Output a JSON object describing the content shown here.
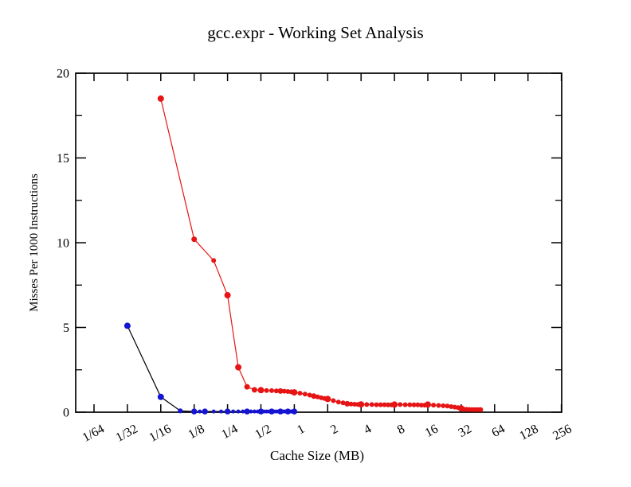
{
  "figure": {
    "background": "#ffffff",
    "frame_color": "#000000"
  },
  "chart_data": {
    "type": "line",
    "title": "gcc.expr - Working Set Analysis",
    "xlabel": "Cache Size (MB)",
    "ylabel": "Misses Per 1000 Instructions",
    "x_scale": "log2",
    "ylim": [
      0,
      20
    ],
    "xlim_labels": [
      "1/64",
      "256"
    ],
    "grid": "off",
    "legend": "none",
    "x_ticks": [
      {
        "label": "1/64",
        "value": 0.015625
      },
      {
        "label": "1/32",
        "value": 0.03125
      },
      {
        "label": "1/16",
        "value": 0.0625
      },
      {
        "label": "1/8",
        "value": 0.125
      },
      {
        "label": "1/4",
        "value": 0.25
      },
      {
        "label": "1/2",
        "value": 0.5
      },
      {
        "label": "1",
        "value": 1
      },
      {
        "label": "2",
        "value": 2
      },
      {
        "label": "4",
        "value": 4
      },
      {
        "label": "8",
        "value": 8
      },
      {
        "label": "16",
        "value": 16
      },
      {
        "label": "32",
        "value": 32
      },
      {
        "label": "64",
        "value": 64
      },
      {
        "label": "128",
        "value": 128
      },
      {
        "label": "256",
        "value": 256
      }
    ],
    "y_ticks": {
      "major": [
        0,
        5,
        10,
        15,
        20
      ],
      "minor": [
        2.5,
        7.5,
        12.5,
        17.5
      ]
    },
    "series": [
      {
        "id": "series-red",
        "marker": "circle",
        "marker_color": "#e61414",
        "line_color": "#e61414",
        "points": [
          [
            0.0625,
            18.5,
            3.5
          ],
          [
            0.125,
            10.2,
            3
          ],
          [
            0.1875,
            8.95,
            2.5
          ],
          [
            0.25,
            6.9,
            3.5
          ],
          [
            0.3125,
            2.65,
            3.5
          ],
          [
            0.375,
            1.5,
            3
          ],
          [
            0.4375,
            1.32,
            3
          ],
          [
            0.5,
            1.3,
            3.5
          ],
          [
            0.5625,
            1.28,
            2.5
          ],
          [
            0.625,
            1.27,
            2.5
          ],
          [
            0.6875,
            1.26,
            2.5
          ],
          [
            0.75,
            1.25,
            3
          ],
          [
            0.8125,
            1.24,
            2.5
          ],
          [
            0.875,
            1.22,
            2.5
          ],
          [
            0.9375,
            1.2,
            2.5
          ],
          [
            1,
            1.17,
            3.5
          ],
          [
            1.125,
            1.12,
            2.5
          ],
          [
            1.25,
            1.07,
            2.5
          ],
          [
            1.375,
            1.01,
            2.5
          ],
          [
            1.5,
            0.95,
            3
          ],
          [
            1.625,
            0.9,
            2.5
          ],
          [
            1.75,
            0.85,
            2.5
          ],
          [
            1.875,
            0.81,
            2.5
          ],
          [
            2,
            0.78,
            3.5
          ],
          [
            2.25,
            0.68,
            2.5
          ],
          [
            2.5,
            0.6,
            2.5
          ],
          [
            2.75,
            0.55,
            2.5
          ],
          [
            3,
            0.5,
            3
          ],
          [
            3.25,
            0.48,
            2.5
          ],
          [
            3.5,
            0.47,
            2.5
          ],
          [
            3.75,
            0.46,
            2.5
          ],
          [
            4,
            0.46,
            3.5
          ],
          [
            4.5,
            0.45,
            2.5
          ],
          [
            5,
            0.45,
            2.5
          ],
          [
            5.5,
            0.44,
            2.5
          ],
          [
            6,
            0.44,
            2.5
          ],
          [
            6.5,
            0.44,
            2.5
          ],
          [
            7,
            0.43,
            2.5
          ],
          [
            7.5,
            0.43,
            2.5
          ],
          [
            8,
            0.45,
            3.5
          ],
          [
            9,
            0.45,
            2.5
          ],
          [
            10,
            0.44,
            2.5
          ],
          [
            11,
            0.44,
            2.5
          ],
          [
            12,
            0.43,
            2.5
          ],
          [
            13,
            0.43,
            2.5
          ],
          [
            14,
            0.42,
            2.5
          ],
          [
            15,
            0.42,
            2.5
          ],
          [
            16,
            0.45,
            3.5
          ],
          [
            18,
            0.42,
            2.5
          ],
          [
            20,
            0.4,
            2.5
          ],
          [
            22,
            0.38,
            2.5
          ],
          [
            24,
            0.36,
            2.5
          ],
          [
            26,
            0.33,
            2.5
          ],
          [
            28,
            0.3,
            2.5
          ],
          [
            30,
            0.27,
            2.5
          ],
          [
            32,
            0.22,
            3.5
          ],
          [
            34,
            0.18,
            2.5
          ],
          [
            36,
            0.17,
            2.5
          ],
          [
            38,
            0.16,
            2.5
          ],
          [
            40,
            0.15,
            2.5
          ],
          [
            42,
            0.15,
            2.5
          ],
          [
            44,
            0.15,
            2.5
          ],
          [
            46,
            0.15,
            2.5
          ],
          [
            48,
            0.15,
            2.5
          ]
        ]
      },
      {
        "id": "series-blue",
        "marker": "circle",
        "marker_color": "#1414d2",
        "line_color": "#000000",
        "points": [
          [
            0.03125,
            5.1,
            3.5
          ],
          [
            0.0625,
            0.9,
            3.5
          ],
          [
            0.09375,
            0.08,
            2.6
          ],
          [
            0.125,
            0.04,
            3.2
          ],
          [
            0.140625,
            0.04,
            2
          ],
          [
            0.15625,
            0.04,
            3.2
          ],
          [
            0.1875,
            0.04,
            2
          ],
          [
            0.21875,
            0.04,
            2
          ],
          [
            0.25,
            0.04,
            3.2
          ],
          [
            0.28125,
            0.04,
            2
          ],
          [
            0.3125,
            0.04,
            2
          ],
          [
            0.34375,
            0.04,
            2
          ],
          [
            0.375,
            0.04,
            3.2
          ],
          [
            0.40625,
            0.04,
            2
          ],
          [
            0.4375,
            0.04,
            2
          ],
          [
            0.46875,
            0.04,
            2
          ],
          [
            0.5,
            0.04,
            3.2
          ],
          [
            0.53125,
            0.04,
            2
          ],
          [
            0.5625,
            0.04,
            2
          ],
          [
            0.59375,
            0.04,
            2
          ],
          [
            0.625,
            0.04,
            3.2
          ],
          [
            0.65625,
            0.04,
            2
          ],
          [
            0.6875,
            0.04,
            2
          ],
          [
            0.71875,
            0.04,
            2
          ],
          [
            0.75,
            0.04,
            3.2
          ],
          [
            0.78125,
            0.04,
            2
          ],
          [
            0.8125,
            0.04,
            2
          ],
          [
            0.84375,
            0.04,
            2
          ],
          [
            0.875,
            0.04,
            3.2
          ],
          [
            0.90625,
            0.04,
            2
          ],
          [
            0.9375,
            0.04,
            2
          ],
          [
            0.96875,
            0.04,
            2
          ],
          [
            1.0,
            0.04,
            3.2
          ]
        ]
      }
    ]
  }
}
